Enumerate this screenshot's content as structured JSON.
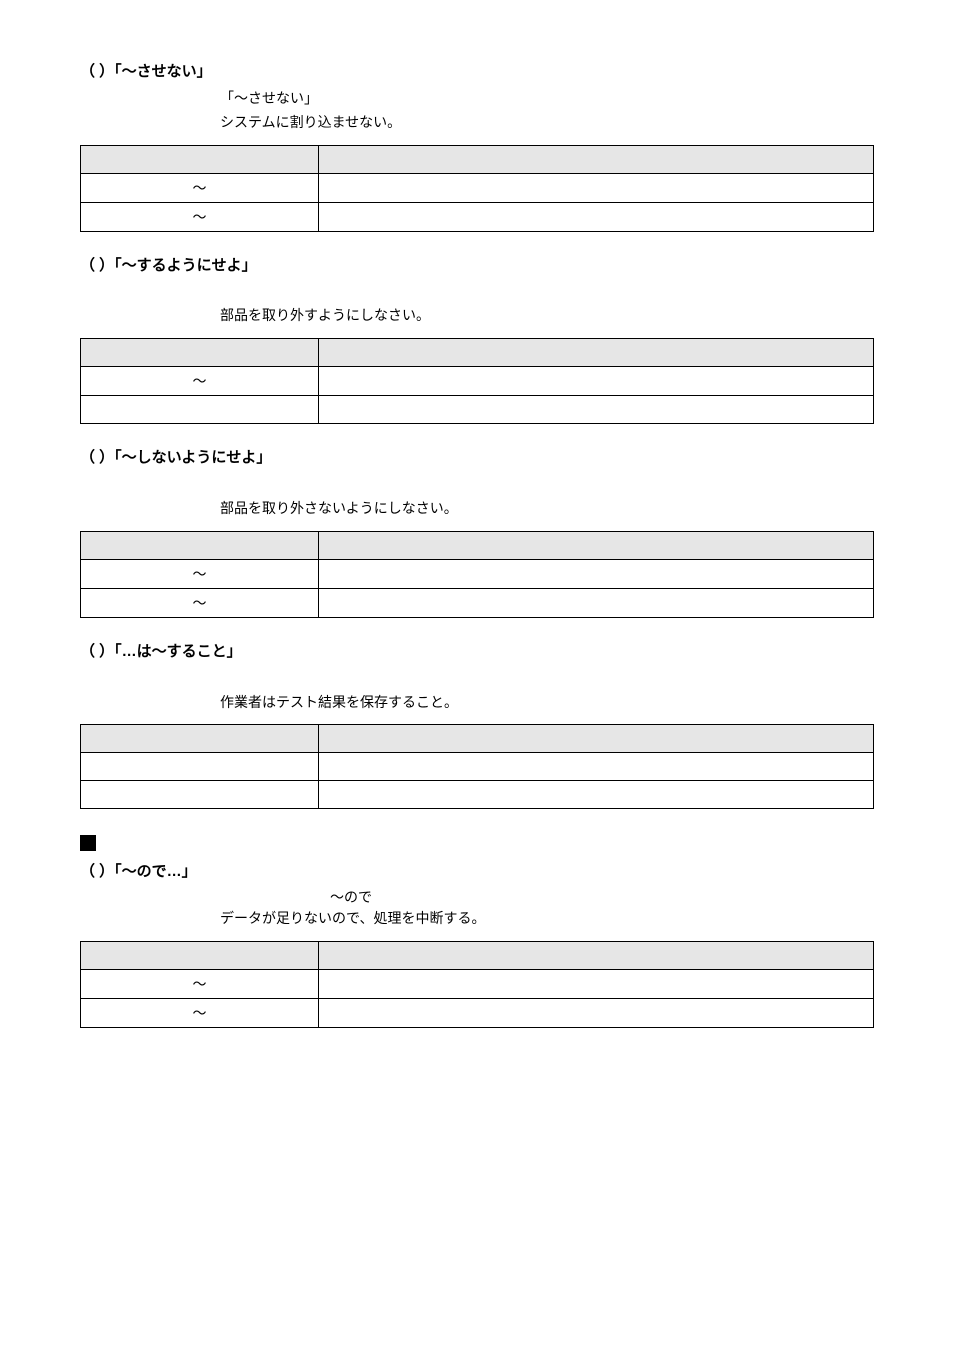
{
  "sections": [
    {
      "heading": "（ ）「〜させない」",
      "lines": [
        "「〜させない」",
        "システムに割り込ませない。"
      ],
      "table": [
        {
          "left": "",
          "right": "",
          "header": true
        },
        {
          "left": "〜",
          "right": ""
        },
        {
          "left": "〜",
          "right": ""
        }
      ]
    },
    {
      "heading": "（ ）「〜するようにせよ」",
      "lines": [
        "",
        "部品を取り外すようにしなさい。"
      ],
      "table": [
        {
          "left": "",
          "right": "",
          "header": true
        },
        {
          "left": "〜",
          "right": ""
        },
        {
          "left": "",
          "right": ""
        }
      ]
    },
    {
      "heading": "（ ）「〜しないようにせよ」",
      "lines": [
        "",
        "部品を取り外さないようにしなさい。"
      ],
      "table": [
        {
          "left": "",
          "right": "",
          "header": true
        },
        {
          "left": "〜",
          "right": ""
        },
        {
          "left": "〜",
          "right": ""
        }
      ]
    },
    {
      "heading": "（ ）「…は〜すること」",
      "lines": [
        "",
        "作業者はテスト結果を保存すること。"
      ],
      "table": [
        {
          "left": "",
          "right": "",
          "header": true
        },
        {
          "left": "",
          "right": ""
        },
        {
          "left": "",
          "right": ""
        }
      ]
    }
  ],
  "square": true,
  "reason_section": {
    "heading": "（ ）「〜ので…」",
    "center_label": "〜ので",
    "line": "データが足りないので、処理を中断する。",
    "table": [
      {
        "left": "",
        "right": "",
        "header": true
      },
      {
        "left": "〜",
        "right": ""
      },
      {
        "left": "〜",
        "right": ""
      }
    ]
  }
}
